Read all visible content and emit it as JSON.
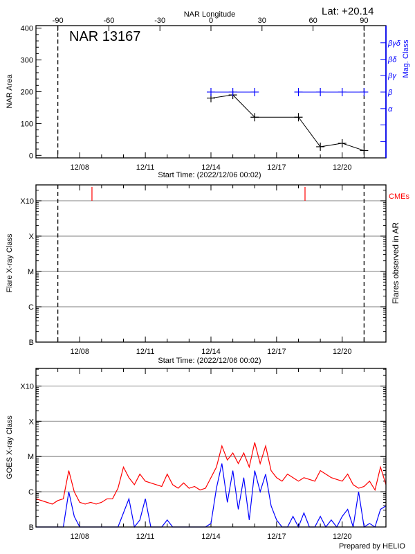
{
  "header": {
    "lat_label": "Lat: +20.14",
    "credit": "Prepared by HELIO"
  },
  "colors": {
    "area": "#000000",
    "mag_class": "#0000ff",
    "goes_long": "#ff0000",
    "goes_short": "#0000ff",
    "cme": "#ff0000",
    "grid": "#999999"
  },
  "chart_data": [
    {
      "type": "line",
      "title": "NAR 13167",
      "xlabel": "Start Time: (2022/12/06 00:02)",
      "x_top_label": "NAR Longitude",
      "ylabel": "NAR Area",
      "y2label": "Mag. Class",
      "x_start": "2022/12/06 00:02",
      "xlim_days": [
        0,
        16
      ],
      "x_tick_labels": [
        "12/08",
        "12/11",
        "12/14",
        "12/17",
        "12/20"
      ],
      "x_tick_days": [
        2,
        5,
        8,
        11,
        14
      ],
      "x_top_tick_labels": [
        "-90",
        "-60",
        "-30",
        "0",
        "30",
        "60",
        "90"
      ],
      "x_top_tick_days": [
        1,
        3.333,
        5.667,
        8,
        10.333,
        12.667,
        15
      ],
      "ylim": [
        -8,
        408
      ],
      "y_ticks": [
        0,
        100,
        200,
        300,
        400
      ],
      "y2_ticks": [
        {
          "label": "",
          "y": 43
        },
        {
          "label": "",
          "y": 96
        },
        {
          "label": "α",
          "y": 147
        },
        {
          "label": "β",
          "y": 199
        },
        {
          "label": "βγ",
          "y": 251
        },
        {
          "label": "βδ",
          "y": 302
        },
        {
          "label": "βγδ",
          "y": 354
        }
      ],
      "dashed_lines_days": [
        1,
        15
      ],
      "area": {
        "x_days": [
          8,
          9,
          10,
          12,
          13,
          14,
          15
        ],
        "values": [
          180,
          190,
          120,
          120,
          27,
          38,
          15
        ]
      },
      "mag_class": {
        "x_days": [
          8,
          9,
          10,
          12,
          13,
          14,
          15
        ],
        "values": [
          "β",
          "β",
          "β",
          "β",
          "β",
          "β",
          "β"
        ]
      }
    },
    {
      "type": "scatter",
      "xlabel": "Start Time: (2022/12/06 00:02)",
      "ylabel": "Flare X-ray Class",
      "y2label": "Flares observed in AR",
      "cme_label": "CMEs",
      "xlim_days": [
        0,
        16
      ],
      "x_tick_labels": [
        "12/08",
        "12/11",
        "12/14",
        "12/17",
        "12/20"
      ],
      "x_tick_days": [
        2,
        5,
        8,
        11,
        14
      ],
      "y_scale": "log",
      "ylim_log": [
        -7,
        -2.55
      ],
      "y_tick_labels": [
        "B",
        "C",
        "M",
        "X",
        "X10"
      ],
      "y_tick_log": [
        -7,
        -6,
        -5,
        -4,
        -3
      ],
      "dashed_lines_days": [
        1,
        15
      ],
      "cme_days": [
        2.56,
        12.3
      ],
      "flares": []
    },
    {
      "type": "line",
      "ylabel": "GOES X-ray Class",
      "xlim_days": [
        0,
        16
      ],
      "x_tick_labels": [
        "12/08",
        "12/11",
        "12/14",
        "12/17",
        "12/20"
      ],
      "x_tick_days": [
        2,
        5,
        8,
        11,
        14
      ],
      "y_scale": "log",
      "ylim_log": [
        -7,
        -2.5
      ],
      "y_tick_labels": [
        "B",
        "C",
        "M",
        "X",
        "X10"
      ],
      "y_tick_log": [
        -7,
        -6,
        -5,
        -4,
        -3
      ],
      "x_step_days": 0.25,
      "series": [
        {
          "values": [
            -6.2,
            -6.25,
            -6.3,
            -6.35,
            -6.25,
            -6.2,
            -5.4,
            -6.0,
            -6.3,
            -6.35,
            -6.3,
            -6.35,
            -6.3,
            -6.2,
            -6.2,
            -5.9,
            -5.3,
            -5.6,
            -5.8,
            -5.5,
            -5.7,
            -5.75,
            -5.8,
            -5.85,
            -5.5,
            -5.8,
            -5.9,
            -5.75,
            -5.9,
            -5.85,
            -5.95,
            -5.9,
            -5.6,
            -5.3,
            -4.7,
            -5.1,
            -4.9,
            -5.2,
            -4.9,
            -5.3,
            -4.6,
            -5.2,
            -4.7,
            -5.4,
            -5.6,
            -5.7,
            -5.5,
            -5.6,
            -5.7,
            -5.6,
            -5.65,
            -5.7,
            -5.4,
            -5.5,
            -5.6,
            -5.65,
            -5.7,
            -5.5,
            -5.8,
            -5.9,
            -5.85,
            -5.7,
            -5.95,
            -5.3,
            -5.8
          ]
        },
        {
          "values": [
            -7.5,
            -7.5,
            -7.5,
            -7.5,
            -7.5,
            -7.5,
            -6.0,
            -6.7,
            -7.5,
            -7.5,
            -7.5,
            -7.5,
            -7.5,
            -7.5,
            -7.5,
            -7.5,
            -6.6,
            -6.2,
            -7.2,
            -6.8,
            -6.2,
            -7.3,
            -7.5,
            -7.5,
            -6.8,
            -7.5,
            -7.5,
            -7.3,
            -7.5,
            -7.5,
            -7.5,
            -7.5,
            -6.9,
            -5.9,
            -5.2,
            -6.3,
            -5.4,
            -6.5,
            -5.6,
            -6.8,
            -5.4,
            -6.0,
            -5.5,
            -6.4,
            -6.8,
            -7.2,
            -7.5,
            -6.7,
            -7.5,
            -6.6,
            -7.5,
            -7.3,
            -6.7,
            -7.5,
            -6.8,
            -7.2,
            -6.7,
            -6.5,
            -7.3,
            -6.0,
            -7.5,
            -6.9,
            -7.5,
            -6.5,
            -6.4
          ]
        }
      ]
    }
  ]
}
